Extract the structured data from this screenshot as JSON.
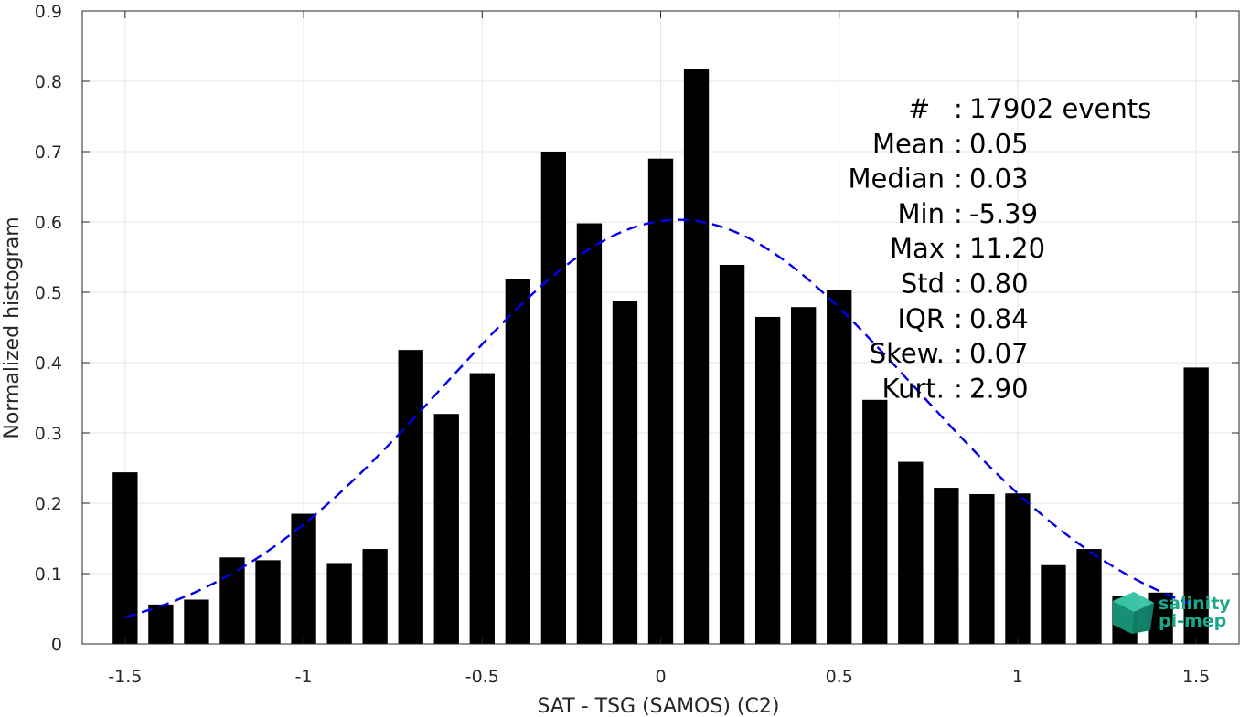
{
  "chart_data": {
    "type": "bar",
    "xlabel": "SAT - TSG (SAMOS) (C2)",
    "ylabel": "Normalized histogram",
    "xlim": [
      -1.62,
      1.62
    ],
    "ylim": [
      0,
      0.9
    ],
    "xticks": [
      -1.5,
      -1,
      -0.5,
      0,
      0.5,
      1,
      1.5
    ],
    "xtick_labels": [
      "-1.5",
      "-1",
      "-0.5",
      "0",
      "0.5",
      "1",
      "1.5"
    ],
    "yticks": [
      0,
      0.1,
      0.2,
      0.3,
      0.4,
      0.5,
      0.6,
      0.7,
      0.8,
      0.9
    ],
    "ytick_labels": [
      "0",
      "0.1",
      "0.2",
      "0.3",
      "0.4",
      "0.5",
      "0.6",
      "0.7",
      "0.8",
      "0.9"
    ],
    "grid": true,
    "bar_color": "#000000",
    "bar_width": 0.07,
    "bins": [
      {
        "x": -1.5,
        "y": 0.244
      },
      {
        "x": -1.4,
        "y": 0.056
      },
      {
        "x": -1.3,
        "y": 0.063
      },
      {
        "x": -1.2,
        "y": 0.123
      },
      {
        "x": -1.1,
        "y": 0.119
      },
      {
        "x": -1.0,
        "y": 0.185
      },
      {
        "x": -0.9,
        "y": 0.115
      },
      {
        "x": -0.8,
        "y": 0.135
      },
      {
        "x": -0.7,
        "y": 0.418
      },
      {
        "x": -0.6,
        "y": 0.327
      },
      {
        "x": -0.5,
        "y": 0.385
      },
      {
        "x": -0.4,
        "y": 0.519
      },
      {
        "x": -0.3,
        "y": 0.7
      },
      {
        "x": -0.2,
        "y": 0.598
      },
      {
        "x": -0.1,
        "y": 0.488
      },
      {
        "x": 0.0,
        "y": 0.69
      },
      {
        "x": 0.1,
        "y": 0.817
      },
      {
        "x": 0.2,
        "y": 0.539
      },
      {
        "x": 0.3,
        "y": 0.465
      },
      {
        "x": 0.4,
        "y": 0.479
      },
      {
        "x": 0.5,
        "y": 0.503
      },
      {
        "x": 0.6,
        "y": 0.347
      },
      {
        "x": 0.7,
        "y": 0.259
      },
      {
        "x": 0.8,
        "y": 0.222
      },
      {
        "x": 0.9,
        "y": 0.213
      },
      {
        "x": 1.0,
        "y": 0.214
      },
      {
        "x": 1.1,
        "y": 0.112
      },
      {
        "x": 1.2,
        "y": 0.135
      },
      {
        "x": 1.3,
        "y": 0.068
      },
      {
        "x": 1.4,
        "y": 0.073
      },
      {
        "x": 1.5,
        "y": 0.393
      }
    ],
    "fit_curve": {
      "type": "gaussian",
      "mean": 0.05,
      "std": 0.66,
      "peak": 0.603,
      "x_range": [
        -1.5,
        1.5
      ],
      "color": "#0000ee",
      "style": "dashed"
    }
  },
  "stats": [
    {
      "label": "#",
      "sep": ":",
      "value": "17902 events"
    },
    {
      "label": "Mean",
      "sep": ":",
      "value": "0.05"
    },
    {
      "label": "Median",
      "sep": ":",
      "value": "0.03"
    },
    {
      "label": "Min",
      "sep": ":",
      "value": "-5.39"
    },
    {
      "label": "Max",
      "sep": ":",
      "value": "11.20"
    },
    {
      "label": "Std",
      "sep": ":",
      "value": "0.80"
    },
    {
      "label": "IQR",
      "sep": ":",
      "value": "0.84"
    },
    {
      "label": "Skew.",
      "sep": ":",
      "value": "0.07"
    },
    {
      "label": "Kurt.",
      "sep": ":",
      "value": "2.90"
    }
  ],
  "logo": {
    "line1": "salinity",
    "line2": "pi-mep",
    "icon": "cube-logo-icon",
    "color": "#1aa88a"
  }
}
